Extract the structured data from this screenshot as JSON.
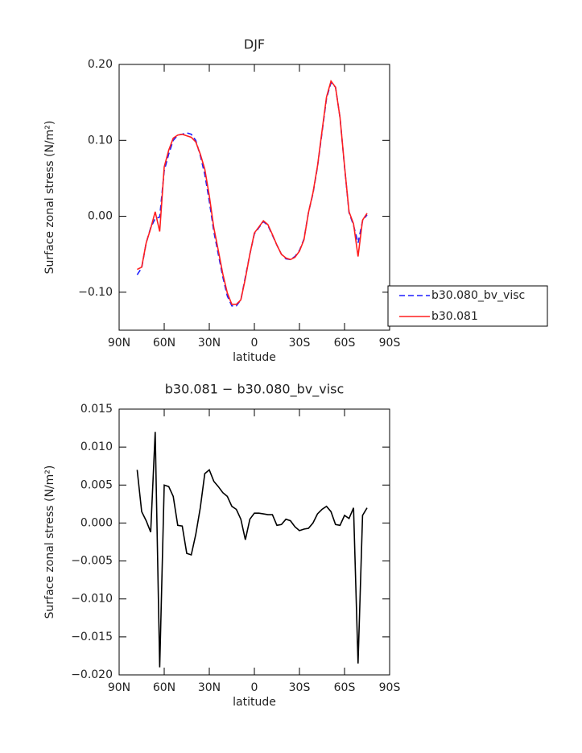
{
  "chart_data": [
    {
      "type": "line",
      "title": "DJF",
      "xlabel": "latitude",
      "ylabel": "Surface zonal stress (N/m²)",
      "x": [
        78,
        75,
        72,
        69,
        66,
        63,
        60,
        57,
        54,
        51,
        48,
        45,
        42,
        39,
        36,
        33,
        30,
        27,
        24,
        21,
        18,
        15,
        12,
        9,
        6,
        3,
        0,
        -3,
        -6,
        -9,
        -12,
        -15,
        -18,
        -21,
        -24,
        -27,
        -30,
        -33,
        -36,
        -39,
        -42,
        -45,
        -48,
        -51,
        -54,
        -57,
        -60,
        -63,
        -66,
        -69,
        -72,
        -75
      ],
      "series": [
        {
          "name": "b30.080_bv_visc",
          "color": "#1f1fff",
          "dashed": true,
          "values": [
            -0.077,
            -0.068,
            -0.035,
            -0.015,
            -0.003,
            -0.001,
            0.06,
            0.082,
            0.1,
            0.107,
            0.108,
            0.11,
            0.108,
            0.1,
            0.08,
            0.055,
            0.02,
            -0.02,
            -0.05,
            -0.08,
            -0.105,
            -0.118,
            -0.118,
            -0.11,
            -0.08,
            -0.05,
            -0.023,
            -0.015,
            -0.007,
            -0.012,
            -0.025,
            -0.038,
            -0.05,
            -0.056,
            -0.057,
            -0.053,
            -0.045,
            -0.03,
            0.005,
            0.03,
            0.065,
            0.11,
            0.155,
            0.176,
            0.17,
            0.13,
            0.065,
            0.005,
            -0.012,
            -0.035,
            -0.006,
            0.002
          ]
        },
        {
          "name": "b30.081",
          "color": "#ff1f1f",
          "dashed": false,
          "values": [
            -0.07,
            -0.067,
            -0.035,
            -0.016,
            0.006,
            -0.02,
            0.065,
            0.087,
            0.103,
            0.107,
            0.108,
            0.106,
            0.104,
            0.098,
            0.082,
            0.062,
            0.027,
            -0.015,
            -0.045,
            -0.076,
            -0.101,
            -0.116,
            -0.116,
            -0.11,
            -0.082,
            -0.05,
            -0.022,
            -0.014,
            -0.006,
            -0.011,
            -0.024,
            -0.038,
            -0.05,
            -0.055,
            -0.057,
            -0.054,
            -0.046,
            -0.031,
            0.005,
            0.031,
            0.066,
            0.112,
            0.157,
            0.178,
            0.17,
            0.13,
            0.066,
            0.006,
            -0.01,
            -0.053,
            -0.005,
            0.004
          ]
        }
      ],
      "xlim": [
        90,
        -90
      ],
      "xticks": [
        {
          "value": 90,
          "label": "90N"
        },
        {
          "value": 60,
          "label": "60N"
        },
        {
          "value": 30,
          "label": "30N"
        },
        0,
        {
          "value": -30,
          "label": "30S"
        },
        {
          "value": -60,
          "label": "60S"
        },
        {
          "value": -90,
          "label": "90S"
        }
      ],
      "ylim": [
        -0.15,
        0.2
      ],
      "yticks": [
        {
          "value": -0.1,
          "label": "−0.10"
        },
        {
          "value": 0,
          "label": "0.00"
        },
        {
          "value": 0.1,
          "label": "0.10"
        },
        {
          "value": 0.2,
          "label": "0.20"
        }
      ],
      "legend": "outside-right"
    },
    {
      "type": "line",
      "title": "b30.081 − b30.080_bv_visc",
      "xlabel": "latitude",
      "ylabel": "Surface zonal stress (N/m²)",
      "x": [
        78,
        75,
        72,
        69,
        66,
        63,
        60,
        57,
        54,
        51,
        48,
        45,
        42,
        39,
        36,
        33,
        30,
        27,
        24,
        21,
        18,
        15,
        12,
        9,
        6,
        3,
        0,
        -3,
        -6,
        -9,
        -12,
        -15,
        -18,
        -21,
        -24,
        -27,
        -30,
        -33,
        -36,
        -39,
        -42,
        -45,
        -48,
        -51,
        -54,
        -57,
        -60,
        -63,
        -66,
        -69,
        -72,
        -75
      ],
      "series": [
        {
          "color": "#000000",
          "dashed": false,
          "values": [
            0.007,
            0.0015,
            0.0003,
            -0.0012,
            0.012,
            -0.019,
            0.005,
            0.0048,
            0.0035,
            -0.0003,
            -0.0004,
            -0.004,
            -0.0042,
            -0.0015,
            0.002,
            0.0065,
            0.007,
            0.0055,
            0.0048,
            0.004,
            0.0035,
            0.0022,
            0.0018,
            0.0005,
            -0.0022,
            0.0005,
            0.0013,
            0.0013,
            0.0012,
            0.0011,
            0.0011,
            -0.0003,
            -0.0002,
            0.0005,
            0.0003,
            -0.0005,
            -0.001,
            -0.0008,
            -0.0007,
            0.0,
            0.0012,
            0.0018,
            0.0022,
            0.0015,
            -0.0002,
            -0.0003,
            0.001,
            0.0006,
            0.002,
            -0.0185,
            0.001,
            0.002
          ]
        }
      ],
      "xlim": [
        90,
        -90
      ],
      "xticks": [
        {
          "value": 90,
          "label": "90N"
        },
        {
          "value": 60,
          "label": "60N"
        },
        {
          "value": 30,
          "label": "30N"
        },
        0,
        {
          "value": -30,
          "label": "30S"
        },
        {
          "value": -60,
          "label": "60S"
        },
        {
          "value": -90,
          "label": "90S"
        }
      ],
      "ylim": [
        -0.02,
        0.015
      ],
      "yticks": [
        {
          "value": -0.02,
          "label": "−0.020"
        },
        {
          "value": -0.015,
          "label": "−0.015"
        },
        {
          "value": -0.01,
          "label": "−0.010"
        },
        {
          "value": -0.005,
          "label": "−0.005"
        },
        {
          "value": 0,
          "label": "0.000"
        },
        0.005,
        {
          "value": 0.01,
          "label": "0.010"
        },
        0.015
      ]
    }
  ]
}
